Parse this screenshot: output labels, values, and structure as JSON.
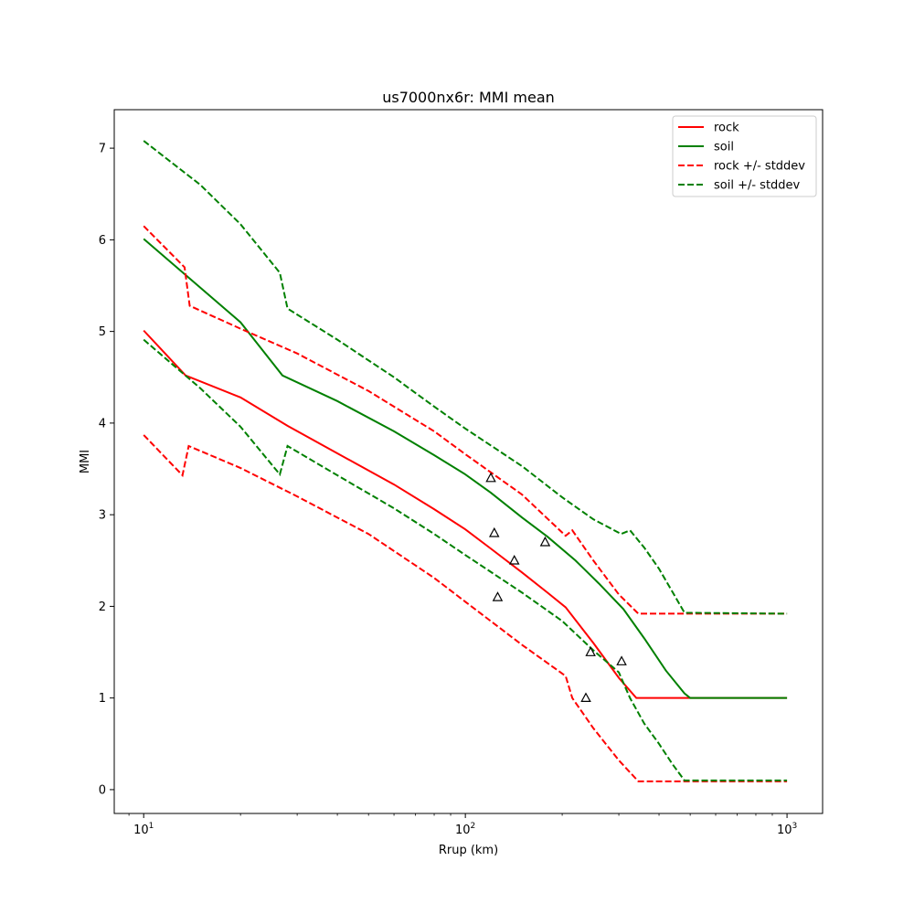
{
  "chart_data": {
    "type": "line",
    "title": "us7000nx6r: MMI mean",
    "xlabel": "Rrup (km)",
    "ylabel": "MMI",
    "xscale": "log",
    "xlim": [
      8.1,
      1290
    ],
    "ylim": [
      -0.26,
      7.42
    ],
    "xticks": [
      {
        "value": 10,
        "base": "10",
        "exp": "1"
      },
      {
        "value": 100,
        "base": "10",
        "exp": "2"
      },
      {
        "value": 1000,
        "base": "10",
        "exp": "3"
      }
    ],
    "yticks": [
      0,
      1,
      2,
      3,
      4,
      5,
      6,
      7
    ],
    "grid": false,
    "legend_position": "top-right",
    "series": [
      {
        "name": "rock",
        "color": "#ff0000",
        "style": "solid",
        "x": [
          10,
          13.5,
          20,
          28,
          40,
          60,
          80,
          100,
          120,
          150,
          180,
          205,
          250,
          300,
          340,
          1000
        ],
        "y": [
          5.01,
          4.52,
          4.28,
          3.97,
          3.67,
          3.33,
          3.06,
          2.84,
          2.63,
          2.37,
          2.15,
          1.99,
          1.6,
          1.22,
          1.0,
          1.0
        ]
      },
      {
        "name": "soil",
        "color": "#008000",
        "style": "solid",
        "x": [
          10,
          20,
          27,
          40,
          60,
          80,
          100,
          120,
          150,
          180,
          220,
          260,
          310,
          360,
          420,
          480,
          500,
          1000
        ],
        "y": [
          6.01,
          5.1,
          4.52,
          4.24,
          3.91,
          3.65,
          3.44,
          3.24,
          2.97,
          2.76,
          2.5,
          2.25,
          1.97,
          1.65,
          1.3,
          1.05,
          1.0,
          1.0
        ]
      },
      {
        "name": "rock +/- stddev",
        "color": "#ff0000",
        "style": "dashed",
        "x": [
          10,
          13.4,
          13.9,
          20,
          30,
          50,
          80,
          100,
          150,
          205,
          215,
          250,
          300,
          345,
          1000
        ],
        "y": [
          6.15,
          5.7,
          5.28,
          5.03,
          4.76,
          4.35,
          3.91,
          3.66,
          3.22,
          2.77,
          2.83,
          2.5,
          2.13,
          1.92,
          1.92
        ]
      },
      {
        "name": "",
        "color": "#ff0000",
        "style": "dashed",
        "x": [
          10,
          13.2,
          13.8,
          20,
          30,
          50,
          80,
          100,
          150,
          205,
          215,
          250,
          300,
          345,
          1000
        ],
        "y": [
          3.87,
          3.43,
          3.75,
          3.51,
          3.2,
          2.79,
          2.31,
          2.05,
          1.58,
          1.24,
          1.0,
          0.67,
          0.32,
          0.09,
          0.09
        ]
      },
      {
        "name": "soil +/- stddev",
        "color": "#008000",
        "style": "dashed",
        "x": [
          10,
          15,
          20,
          26.5,
          28,
          40,
          60,
          80,
          100,
          150,
          200,
          250,
          305,
          325,
          360,
          400,
          440,
          480,
          1000
        ],
        "y": [
          7.08,
          6.6,
          6.17,
          5.64,
          5.25,
          4.91,
          4.5,
          4.18,
          3.94,
          3.53,
          3.19,
          2.95,
          2.79,
          2.83,
          2.64,
          2.41,
          2.16,
          1.93,
          1.92
        ]
      },
      {
        "name": "",
        "color": "#008000",
        "style": "dashed",
        "x": [
          10,
          15,
          20,
          26.5,
          28,
          40,
          60,
          80,
          100,
          150,
          200,
          250,
          300,
          325,
          360,
          400,
          440,
          480,
          1000
        ],
        "y": [
          4.91,
          4.38,
          3.96,
          3.44,
          3.75,
          3.43,
          3.07,
          2.79,
          2.56,
          2.15,
          1.84,
          1.52,
          1.28,
          1.0,
          0.72,
          0.5,
          0.28,
          0.1,
          0.1
        ]
      }
    ],
    "observations": {
      "marker": "open-triangle",
      "color": "#000000",
      "x": [
        120,
        123,
        142,
        177,
        126,
        245,
        306,
        237
      ],
      "y": [
        3.4,
        2.8,
        2.5,
        2.7,
        2.1,
        1.5,
        1.4,
        1.0
      ]
    }
  }
}
